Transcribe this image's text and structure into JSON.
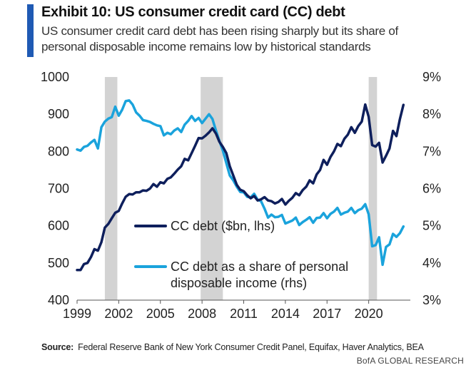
{
  "header": {
    "title": "Exhibit 10: US consumer credit card (CC) debt",
    "subtitle_line1": "US consumer credit card debt has been rising sharply but its share of",
    "subtitle_line2": "personal disposable income remains low by historical standards"
  },
  "colors": {
    "accent": "#1f5ab4",
    "debt_series": "#0e1f5c",
    "share_series": "#1aa3dc",
    "recession": "#d3d3d3"
  },
  "chart_data": {
    "type": "line",
    "title": "US consumer credit card (CC) debt",
    "x_ticks": [
      "1999",
      "2002",
      "2005",
      "2008",
      "2011",
      "2014",
      "2017",
      "2020"
    ],
    "xlim": [
      1999,
      2023
    ],
    "y_left": {
      "ticks": [
        "1000",
        "900",
        "800",
        "700",
        "600",
        "500",
        "400"
      ],
      "ylim": [
        400,
        1000
      ],
      "label": "$bn"
    },
    "y_right": {
      "ticks": [
        "9%",
        "8%",
        "7%",
        "6%",
        "5%",
        "4%",
        "3%"
      ],
      "ylim": [
        3,
        9
      ],
      "label": "%"
    },
    "recession_periods": [
      [
        2001.0,
        2001.9
      ],
      [
        2007.9,
        2009.5
      ],
      [
        2020.0,
        2020.6
      ]
    ],
    "series": [
      {
        "name": "CC debt ($bn, lhs)",
        "axis": "left",
        "points": [
          [
            1999.0,
            481
          ],
          [
            1999.25,
            481
          ],
          [
            1999.5,
            497
          ],
          [
            1999.75,
            500
          ],
          [
            2000.0,
            516
          ],
          [
            2000.25,
            537
          ],
          [
            2000.5,
            533
          ],
          [
            2000.75,
            556
          ],
          [
            2001.0,
            595
          ],
          [
            2001.25,
            605
          ],
          [
            2001.5,
            620
          ],
          [
            2001.75,
            635
          ],
          [
            2002.0,
            640
          ],
          [
            2002.25,
            660
          ],
          [
            2002.5,
            678
          ],
          [
            2002.75,
            685
          ],
          [
            2003.0,
            684
          ],
          [
            2003.25,
            690
          ],
          [
            2003.5,
            690
          ],
          [
            2003.75,
            695
          ],
          [
            2004.0,
            694
          ],
          [
            2004.25,
            700
          ],
          [
            2004.5,
            712
          ],
          [
            2004.75,
            705
          ],
          [
            2005.0,
            717
          ],
          [
            2005.25,
            714
          ],
          [
            2005.5,
            726
          ],
          [
            2005.75,
            730
          ],
          [
            2006.0,
            740
          ],
          [
            2006.25,
            751
          ],
          [
            2006.5,
            760
          ],
          [
            2006.75,
            780
          ],
          [
            2007.0,
            776
          ],
          [
            2007.25,
            795
          ],
          [
            2007.5,
            815
          ],
          [
            2007.75,
            836
          ],
          [
            2008.0,
            835
          ],
          [
            2008.25,
            842
          ],
          [
            2008.5,
            851
          ],
          [
            2008.75,
            862
          ],
          [
            2009.0,
            848
          ],
          [
            2009.25,
            826
          ],
          [
            2009.5,
            812
          ],
          [
            2009.75,
            795
          ],
          [
            2010.0,
            760
          ],
          [
            2010.25,
            735
          ],
          [
            2010.5,
            710
          ],
          [
            2010.75,
            697
          ],
          [
            2011.0,
            693
          ],
          [
            2011.25,
            682
          ],
          [
            2011.5,
            674
          ],
          [
            2011.75,
            680
          ],
          [
            2012.0,
            668
          ],
          [
            2012.25,
            671
          ],
          [
            2012.5,
            677
          ],
          [
            2012.75,
            668
          ],
          [
            2013.0,
            666
          ],
          [
            2013.25,
            660
          ],
          [
            2013.5,
            664
          ],
          [
            2013.75,
            672
          ],
          [
            2014.0,
            657
          ],
          [
            2014.25,
            667
          ],
          [
            2014.5,
            675
          ],
          [
            2014.75,
            688
          ],
          [
            2015.0,
            682
          ],
          [
            2015.25,
            696
          ],
          [
            2015.5,
            705
          ],
          [
            2015.75,
            722
          ],
          [
            2016.0,
            714
          ],
          [
            2016.25,
            738
          ],
          [
            2016.5,
            750
          ],
          [
            2016.75,
            777
          ],
          [
            2017.0,
            764
          ],
          [
            2017.25,
            785
          ],
          [
            2017.5,
            800
          ],
          [
            2017.75,
            820
          ],
          [
            2018.0,
            814
          ],
          [
            2018.25,
            834
          ],
          [
            2018.5,
            845
          ],
          [
            2018.75,
            865
          ],
          [
            2019.0,
            850
          ],
          [
            2019.25,
            868
          ],
          [
            2019.5,
            880
          ],
          [
            2019.75,
            926
          ],
          [
            2020.0,
            893
          ],
          [
            2020.25,
            817
          ],
          [
            2020.5,
            813
          ],
          [
            2020.75,
            823
          ],
          [
            2021.0,
            770
          ],
          [
            2021.25,
            788
          ],
          [
            2021.5,
            808
          ],
          [
            2021.75,
            855
          ],
          [
            2022.0,
            841
          ],
          [
            2022.25,
            887
          ],
          [
            2022.5,
            925
          ]
        ]
      },
      {
        "name": "CC debt as a share of personal disposable income (rhs)",
        "axis": "right",
        "points": [
          [
            1999.0,
            7.05
          ],
          [
            1999.25,
            7.02
          ],
          [
            1999.5,
            7.12
          ],
          [
            1999.75,
            7.15
          ],
          [
            2000.0,
            7.24
          ],
          [
            2000.25,
            7.31
          ],
          [
            2000.5,
            7.08
          ],
          [
            2000.75,
            7.65
          ],
          [
            2001.0,
            7.8
          ],
          [
            2001.25,
            7.88
          ],
          [
            2001.5,
            7.92
          ],
          [
            2001.75,
            8.2
          ],
          [
            2002.0,
            7.96
          ],
          [
            2002.25,
            8.12
          ],
          [
            2002.5,
            8.35
          ],
          [
            2002.75,
            8.37
          ],
          [
            2003.0,
            8.26
          ],
          [
            2003.25,
            8.05
          ],
          [
            2003.5,
            7.96
          ],
          [
            2003.75,
            7.84
          ],
          [
            2004.0,
            7.82
          ],
          [
            2004.25,
            7.79
          ],
          [
            2004.5,
            7.74
          ],
          [
            2004.75,
            7.7
          ],
          [
            2005.0,
            7.68
          ],
          [
            2005.25,
            7.43
          ],
          [
            2005.5,
            7.5
          ],
          [
            2005.75,
            7.46
          ],
          [
            2006.0,
            7.56
          ],
          [
            2006.25,
            7.62
          ],
          [
            2006.5,
            7.52
          ],
          [
            2006.75,
            7.72
          ],
          [
            2007.0,
            7.82
          ],
          [
            2007.25,
            7.95
          ],
          [
            2007.5,
            7.82
          ],
          [
            2007.75,
            7.9
          ],
          [
            2008.0,
            7.76
          ],
          [
            2008.25,
            7.88
          ],
          [
            2008.5,
            8.0
          ],
          [
            2008.75,
            7.87
          ],
          [
            2009.0,
            7.56
          ],
          [
            2009.25,
            7.28
          ],
          [
            2009.5,
            7.02
          ],
          [
            2009.75,
            6.68
          ],
          [
            2010.0,
            6.35
          ],
          [
            2010.25,
            6.22
          ],
          [
            2010.5,
            6.05
          ],
          [
            2010.75,
            5.91
          ],
          [
            2011.0,
            5.9
          ],
          [
            2011.25,
            5.78
          ],
          [
            2011.5,
            5.76
          ],
          [
            2011.75,
            5.86
          ],
          [
            2012.0,
            5.7
          ],
          [
            2012.25,
            5.66
          ],
          [
            2012.5,
            5.46
          ],
          [
            2012.75,
            5.22
          ],
          [
            2013.0,
            5.3
          ],
          [
            2013.25,
            5.23
          ],
          [
            2013.5,
            5.24
          ],
          [
            2013.75,
            5.29
          ],
          [
            2014.0,
            5.06
          ],
          [
            2014.25,
            5.1
          ],
          [
            2014.5,
            5.14
          ],
          [
            2014.75,
            5.22
          ],
          [
            2015.0,
            5.02
          ],
          [
            2015.25,
            5.1
          ],
          [
            2015.5,
            5.16
          ],
          [
            2015.75,
            5.23
          ],
          [
            2016.0,
            5.08
          ],
          [
            2016.25,
            5.21
          ],
          [
            2016.5,
            5.22
          ],
          [
            2016.75,
            5.34
          ],
          [
            2017.0,
            5.2
          ],
          [
            2017.25,
            5.32
          ],
          [
            2017.5,
            5.38
          ],
          [
            2017.75,
            5.48
          ],
          [
            2018.0,
            5.3
          ],
          [
            2018.25,
            5.35
          ],
          [
            2018.5,
            5.38
          ],
          [
            2018.75,
            5.48
          ],
          [
            2019.0,
            5.34
          ],
          [
            2019.25,
            5.42
          ],
          [
            2019.5,
            5.46
          ],
          [
            2019.75,
            5.58
          ],
          [
            2020.0,
            5.31
          ],
          [
            2020.25,
            4.45
          ],
          [
            2020.5,
            4.48
          ],
          [
            2020.75,
            4.69
          ],
          [
            2021.0,
            3.95
          ],
          [
            2021.25,
            4.43
          ],
          [
            2021.5,
            4.5
          ],
          [
            2021.75,
            4.78
          ],
          [
            2022.0,
            4.7
          ],
          [
            2022.25,
            4.8
          ],
          [
            2022.5,
            4.98
          ]
        ]
      }
    ],
    "legend": [
      {
        "label": "CC debt ($bn, lhs)"
      },
      {
        "label_line1": "CC debt as a share of personal",
        "label_line2": "disposable income (rhs)"
      }
    ]
  },
  "footer": {
    "source_label": "Source:",
    "source_text": "Federal Reserve Bank of New York Consumer Credit Panel, Equifax, Haver Analytics, BEA",
    "credit": "BofA GLOBAL RESEARCH"
  }
}
